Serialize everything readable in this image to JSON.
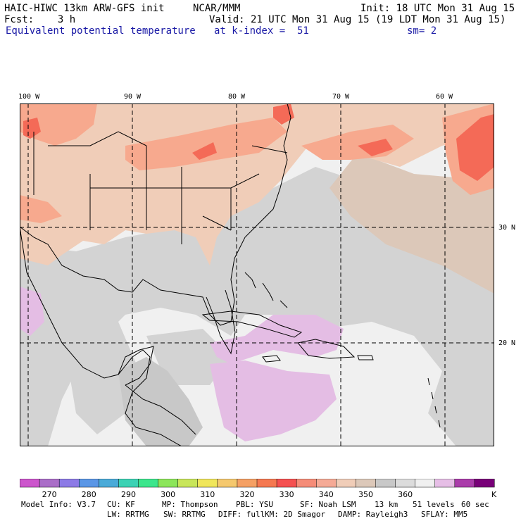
{
  "header": {
    "line1_left": "HAIC-HIWC 13km ARW-GFS init",
    "line1_mid": "NCAR/MMM",
    "line1_right": "Init: 18 UTC Mon 31 Aug 15",
    "line2_left": "Fcst:    3 h",
    "line2_right": "Valid: 21 UTC Mon 31 Aug 15 (19 LDT Mon 31 Aug 15)",
    "field": "Equivalent potential temperature",
    "level": "at k-index =  51",
    "smooth": "sm= 2"
  },
  "map": {
    "lon_labels": [
      "100 W",
      "90 W",
      "80 W",
      "70 W",
      "60 W"
    ],
    "lat_labels": [
      "30 N",
      "20 N"
    ],
    "colors": {
      "sea_light": "#f0f0f0",
      "grey": "#d3d3d3",
      "tan": "#f0cdb8",
      "salmon": "#f7a98e",
      "orange_red": "#f46a57",
      "lilac": "#e4bde4",
      "border": "#000000"
    }
  },
  "colorbar": {
    "colors": [
      "#cc55cc",
      "#aa6ec8",
      "#8c7ae6",
      "#5a96e6",
      "#4aaad8",
      "#3cd2b4",
      "#3ce68c",
      "#8ce65a",
      "#c8e65a",
      "#f0e65a",
      "#f5c86e",
      "#f5a064",
      "#f57850",
      "#f55050",
      "#f58c78",
      "#f5aa96",
      "#f0cdb8",
      "#dcc8b9",
      "#c8c8c8",
      "#dcdcdc",
      "#f0f0f0",
      "#e6bee6",
      "#aa3caa",
      "#780078"
    ],
    "labels": [
      "270",
      "280",
      "290",
      "300",
      "310",
      "320",
      "330",
      "340",
      "350",
      "360"
    ],
    "unit": "K"
  },
  "footer": {
    "line1": [
      "Model Info: V3.7",
      "CU: KF",
      "MP: Thompson",
      "PBL: YSU",
      "SF: Noah LSM",
      "13 km",
      "51 levels",
      "60 sec"
    ],
    "line2": [
      "LW: RRTMG",
      "SW: RRTMG",
      "DIFF: full",
      "KM: 2D Smagor",
      "DAMP: Rayleigh3",
      "SFLAY: MM5"
    ]
  }
}
